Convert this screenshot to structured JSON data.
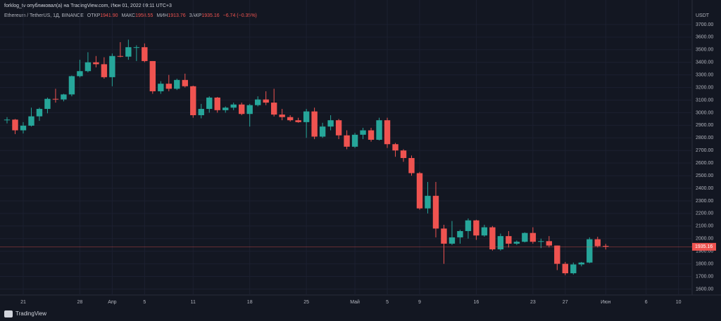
{
  "chart_data": {
    "type": "candlestick",
    "attribution": "forklog_tv опубликовал(а) на TradingView.com, Июн 01, 2022 09:11 UTC+3",
    "symbol": "Ethereum / TetherUS, 1Д, BINANCE",
    "legend": [
      {
        "label": "ОТКР",
        "value": "1941.90"
      },
      {
        "label": "МАКС",
        "value": "1958.55"
      },
      {
        "label": "МИН",
        "value": "1913.76"
      },
      {
        "label": "ЗАКР",
        "value": "1935.16"
      }
    ],
    "change": "−6.74 (−0.35%)",
    "currency": "USDT",
    "last_price_label": "1935.16",
    "brand": "TradingView",
    "up_color": "#26a69a",
    "down_color": "#ef5350",
    "categories": [
      null,
      null,
      "21",
      null,
      null,
      null,
      null,
      null,
      null,
      "28",
      null,
      null,
      null,
      "Апр",
      null,
      null,
      null,
      "5",
      null,
      null,
      null,
      null,
      null,
      "11",
      null,
      null,
      null,
      null,
      null,
      null,
      "18",
      null,
      null,
      null,
      null,
      null,
      null,
      "25",
      null,
      null,
      null,
      null,
      null,
      "Май",
      null,
      null,
      null,
      "5",
      null,
      null,
      null,
      "9",
      null,
      null,
      null,
      null,
      null,
      null,
      "16",
      null,
      null,
      null,
      null,
      null,
      null,
      "23",
      null,
      null,
      null,
      "27",
      null,
      null,
      null,
      null,
      "Июн",
      null,
      null,
      null,
      null,
      "6",
      null,
      null,
      null,
      "10"
    ],
    "open": [
      2940,
      2945,
      2860,
      2897,
      2971,
      3030,
      3110,
      3105,
      3145,
      3290,
      3330,
      3400,
      3385,
      3282,
      3450,
      3445,
      3520,
      3520,
      3410,
      3170,
      3230,
      3190,
      3260,
      3210,
      2980,
      3030,
      3120,
      3020,
      3040,
      3065,
      2990,
      3060,
      3105,
      3080,
      2985,
      2965,
      2940,
      2925,
      3010,
      2810,
      2890,
      2940,
      2820,
      2730,
      2825,
      2860,
      2785,
      2940,
      2750,
      2700,
      2640,
      2520,
      2240,
      2340,
      2080,
      1960,
      2010,
      2060,
      2145,
      2025,
      2090,
      1915,
      2020,
      1960,
      1975,
      2045,
      1975,
      1980,
      1945,
      1800,
      1725,
      1795,
      1810,
      1995,
      1941.9,
      null,
      null,
      null,
      null,
      null,
      null,
      null,
      null,
      null
    ],
    "high": [
      2965,
      2950,
      2925,
      3040,
      3040,
      3120,
      3190,
      3150,
      3295,
      3420,
      3480,
      3450,
      3440,
      3470,
      3560,
      3580,
      3535,
      3550,
      3410,
      3250,
      3300,
      3270,
      3310,
      3215,
      3070,
      3130,
      3125,
      3050,
      3080,
      3080,
      3070,
      3130,
      3170,
      3190,
      3030,
      2980,
      2960,
      3030,
      3040,
      2920,
      2980,
      2950,
      2860,
      2840,
      2880,
      2880,
      2960,
      2960,
      2760,
      2710,
      2660,
      2530,
      2450,
      2450,
      2110,
      2140,
      2070,
      2160,
      2150,
      2110,
      2100,
      2040,
      2060,
      1985,
      2050,
      2090,
      2000,
      2020,
      1945,
      1815,
      1810,
      1815,
      2010,
      2015,
      1958.55,
      null,
      null,
      null,
      null,
      null,
      null,
      null,
      null,
      null
    ],
    "low": [
      2915,
      2830,
      2835,
      2890,
      2935,
      2995,
      3080,
      3090,
      3130,
      3280,
      3320,
      3360,
      3270,
      3210,
      3440,
      3420,
      3410,
      3400,
      3150,
      3150,
      3170,
      3180,
      3200,
      2960,
      2955,
      3000,
      3000,
      3000,
      3020,
      2980,
      2890,
      3050,
      3060,
      2970,
      2940,
      2930,
      2920,
      2800,
      2790,
      2800,
      2860,
      2790,
      2710,
      2720,
      2790,
      2770,
      2780,
      2720,
      2650,
      2610,
      2500,
      2230,
      2200,
      2010,
      1800,
      1950,
      1960,
      2000,
      1990,
      2015,
      1905,
      1905,
      1930,
      1950,
      1970,
      1960,
      1925,
      1930,
      1750,
      1710,
      1715,
      1780,
      1805,
      1930,
      1913.76,
      null,
      null,
      null,
      null,
      null,
      null,
      null,
      null,
      null
    ],
    "close": [
      2945,
      2860,
      2897,
      2971,
      3030,
      3110,
      3105,
      3145,
      3290,
      3330,
      3400,
      3385,
      3282,
      3450,
      3445,
      3520,
      3520,
      3410,
      3170,
      3230,
      3190,
      3260,
      3210,
      2980,
      3030,
      3120,
      3020,
      3040,
      3065,
      2990,
      3060,
      3105,
      3080,
      2985,
      2965,
      2940,
      2925,
      3010,
      2810,
      2890,
      2940,
      2820,
      2730,
      2825,
      2860,
      2785,
      2940,
      2750,
      2700,
      2640,
      2520,
      2240,
      2340,
      2080,
      1960,
      2010,
      2060,
      2145,
      2025,
      2090,
      1915,
      2020,
      1960,
      1975,
      2045,
      1975,
      1980,
      1945,
      1800,
      1725,
      1795,
      1810,
      1995,
      1940,
      1935.16,
      null,
      null,
      null,
      null,
      null,
      null,
      null,
      null,
      null
    ],
    "ylim": [
      1530,
      3800
    ],
    "yticks": [
      {
        "value": 1600,
        "label": "1600.00"
      },
      {
        "value": 1700,
        "label": "1700.00"
      },
      {
        "value": 1800,
        "label": "1800.00"
      },
      {
        "value": 1900,
        "label": "1900.00"
      },
      {
        "value": 2000,
        "label": "2000.00"
      },
      {
        "value": 2100,
        "label": "2100.00"
      },
      {
        "value": 2200,
        "label": "2200.00"
      },
      {
        "value": 2300,
        "label": "2300.00"
      },
      {
        "value": 2400,
        "label": "2400.00"
      },
      {
        "value": 2500,
        "label": "2500.00"
      },
      {
        "value": 2600,
        "label": "2600.00"
      },
      {
        "value": 2700,
        "label": "2700.00"
      },
      {
        "value": 2800,
        "label": "2800.00"
      },
      {
        "value": 2900,
        "label": "2900.00"
      },
      {
        "value": 3000,
        "label": "3000.00"
      },
      {
        "value": 3100,
        "label": "3100.00"
      },
      {
        "value": 3200,
        "label": "3200.00"
      },
      {
        "value": 3300,
        "label": "3300.00"
      },
      {
        "value": 3400,
        "label": "3400.00"
      },
      {
        "value": 3500,
        "label": "3500.00"
      },
      {
        "value": 3600,
        "label": "3600.00"
      },
      {
        "value": 3700,
        "label": "3700.00"
      }
    ],
    "grid": true
  }
}
